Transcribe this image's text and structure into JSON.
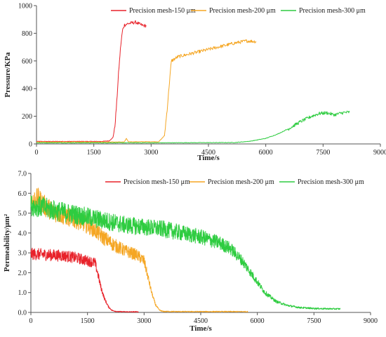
{
  "chart_data": [
    {
      "type": "line",
      "title": "",
      "xlabel": "Time/s",
      "ylabel": "Pressure/KPa",
      "xlim": [
        0,
        9000
      ],
      "ylim": [
        0,
        1000
      ],
      "x_ticks": [
        "0",
        "1500",
        "3000",
        "4500",
        "6000",
        "7500",
        "9000"
      ],
      "y_ticks": [
        "0",
        "200",
        "400",
        "600",
        "800",
        "1000"
      ],
      "legend_position": "top",
      "series": [
        {
          "name": "Precision mesh-150 μm",
          "color": "#e8222a",
          "points": [
            [
              0,
              18
            ],
            [
              1700,
              18
            ],
            [
              1900,
              22
            ],
            [
              2000,
              45
            ],
            [
              2050,
              120
            ],
            [
              2100,
              300
            ],
            [
              2150,
              520
            ],
            [
              2200,
              700
            ],
            [
              2250,
              820
            ],
            [
              2300,
              860
            ],
            [
              2400,
              870
            ],
            [
              2500,
              875
            ],
            [
              2600,
              880
            ],
            [
              2700,
              865
            ],
            [
              2800,
              855
            ],
            [
              2870,
              855
            ]
          ]
        },
        {
          "name": "Precision mesh-200 μm",
          "color": "#f5a623",
          "points": [
            [
              0,
              14
            ],
            [
              2300,
              14
            ],
            [
              2350,
              40
            ],
            [
              2400,
              16
            ],
            [
              3000,
              16
            ],
            [
              3200,
              16
            ],
            [
              3350,
              60
            ],
            [
              3420,
              250
            ],
            [
              3480,
              450
            ],
            [
              3530,
              600
            ],
            [
              3700,
              630
            ],
            [
              4000,
              650
            ],
            [
              4300,
              670
            ],
            [
              4600,
              690
            ],
            [
              4900,
              710
            ],
            [
              5200,
              730
            ],
            [
              5500,
              745
            ],
            [
              5750,
              740
            ]
          ]
        },
        {
          "name": "Precision mesh-300 μm",
          "color": "#2ecc40",
          "points": [
            [
              0,
              8
            ],
            [
              3000,
              8
            ],
            [
              5200,
              10
            ],
            [
              5600,
              20
            ],
            [
              6000,
              40
            ],
            [
              6300,
              70
            ],
            [
              6600,
              110
            ],
            [
              6900,
              160
            ],
            [
              7200,
              200
            ],
            [
              7400,
              220
            ],
            [
              7600,
              225
            ],
            [
              7800,
              210
            ],
            [
              8000,
              225
            ],
            [
              8200,
              230
            ]
          ]
        }
      ]
    },
    {
      "type": "line",
      "title": "",
      "xlabel": "Time/s",
      "ylabel": "Permeability/μm²",
      "xlim": [
        0,
        9000
      ],
      "ylim": [
        0,
        7.0
      ],
      "x_ticks": [
        "0",
        "1500",
        "3000",
        "4500",
        "6000",
        "7500",
        "9000"
      ],
      "y_ticks": [
        "0.0",
        "1.0",
        "2.0",
        "3.0",
        "4.0",
        "5.0",
        "6.0",
        "7.0"
      ],
      "legend_position": "top",
      "series": [
        {
          "name": "Precision mesh-150 μm",
          "color": "#e8222a",
          "points": [
            [
              0,
              2.95
            ],
            [
              300,
              2.92
            ],
            [
              600,
              2.88
            ],
            [
              900,
              2.85
            ],
            [
              1200,
              2.75
            ],
            [
              1500,
              2.6
            ],
            [
              1700,
              2.5
            ],
            [
              1780,
              1.9
            ],
            [
              1850,
              1.3
            ],
            [
              1950,
              0.7
            ],
            [
              2050,
              0.3
            ],
            [
              2150,
              0.1
            ],
            [
              2300,
              0.04
            ],
            [
              2600,
              0.03
            ],
            [
              2850,
              0.03
            ]
          ]
        },
        {
          "name": "Precision mesh-200 μm",
          "color": "#f5a623",
          "points": [
            [
              0,
              5.6
            ],
            [
              200,
              5.7
            ],
            [
              400,
              5.3
            ],
            [
              700,
              5.0
            ],
            [
              1000,
              4.8
            ],
            [
              1300,
              4.6
            ],
            [
              1600,
              4.3
            ],
            [
              1900,
              3.8
            ],
            [
              2200,
              3.4
            ],
            [
              2500,
              3.1
            ],
            [
              2800,
              2.9
            ],
            [
              3000,
              2.6
            ],
            [
              3100,
              1.8
            ],
            [
              3200,
              1.0
            ],
            [
              3300,
              0.4
            ],
            [
              3400,
              0.12
            ],
            [
              3500,
              0.05
            ],
            [
              4000,
              0.04
            ],
            [
              4700,
              0.04
            ],
            [
              5200,
              0.04
            ],
            [
              5750,
              0.04
            ]
          ]
        },
        {
          "name": "Precision mesh-300 μm",
          "color": "#2ecc40",
          "points": [
            [
              0,
              5.4
            ],
            [
              300,
              5.3
            ],
            [
              700,
              5.1
            ],
            [
              1000,
              5.0
            ],
            [
              1500,
              4.8
            ],
            [
              2000,
              4.6
            ],
            [
              2500,
              4.4
            ],
            [
              3000,
              4.3
            ],
            [
              3500,
              4.2
            ],
            [
              4000,
              4.0
            ],
            [
              4500,
              3.8
            ],
            [
              5000,
              3.5
            ],
            [
              5300,
              3.2
            ],
            [
              5600,
              2.6
            ],
            [
              5900,
              1.8
            ],
            [
              6200,
              1.0
            ],
            [
              6500,
              0.55
            ],
            [
              6800,
              0.35
            ],
            [
              7100,
              0.25
            ],
            [
              7500,
              0.2
            ],
            [
              8000,
              0.18
            ],
            [
              8200,
              0.18
            ]
          ]
        }
      ]
    }
  ]
}
